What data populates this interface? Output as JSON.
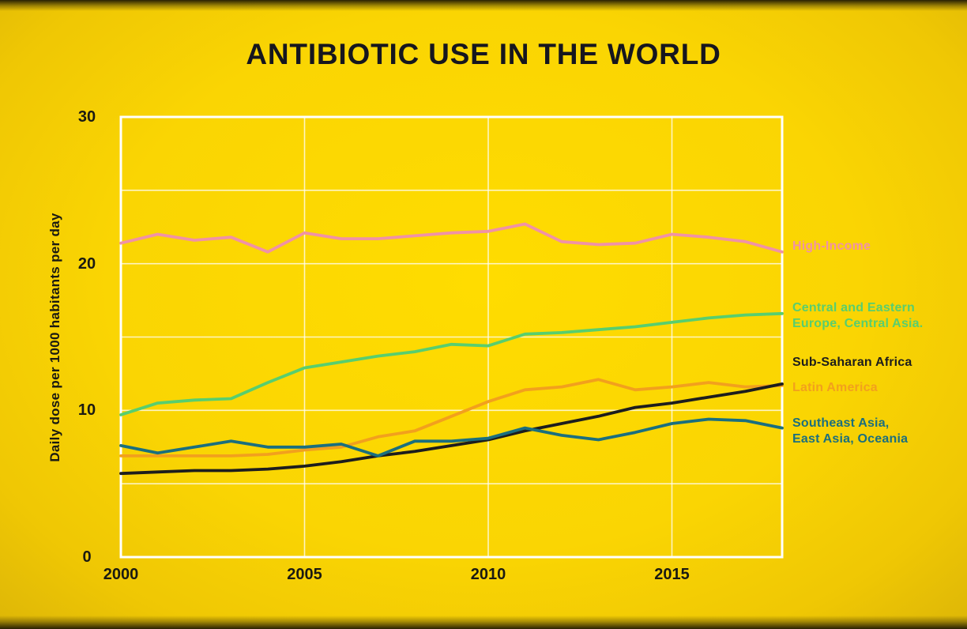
{
  "title": "ANTIBIOTIC USE IN THE WORLD",
  "chart_data": {
    "type": "line",
    "x": [
      2000,
      2001,
      2002,
      2003,
      2004,
      2005,
      2006,
      2007,
      2008,
      2009,
      2010,
      2011,
      2012,
      2013,
      2014,
      2015,
      2016,
      2017,
      2018
    ],
    "series": [
      {
        "id": "high-income",
        "name": "High-Income",
        "legend_lines": [
          "High-Income"
        ],
        "color": "#F092A6",
        "values": [
          21.4,
          22.0,
          21.6,
          21.8,
          20.8,
          22.1,
          21.7,
          21.7,
          21.9,
          22.1,
          22.2,
          22.7,
          21.5,
          21.3,
          21.4,
          22.0,
          21.8,
          21.5,
          20.8
        ]
      },
      {
        "id": "central-eastern-europe-central-asia",
        "name": "Central and Eastern Europe, Central Asia.",
        "legend_lines": [
          "Central and Eastern",
          "Europe, Central Asia."
        ],
        "color": "#58CE6E",
        "values": [
          9.7,
          10.5,
          10.7,
          10.8,
          11.9,
          12.9,
          13.3,
          13.7,
          14.0,
          14.5,
          14.4,
          15.2,
          15.3,
          15.5,
          15.7,
          16.0,
          16.3,
          16.5,
          16.6
        ]
      },
      {
        "id": "sub-saharan-africa",
        "name": "Sub-Saharan Africa",
        "legend_lines": [
          "Sub-Saharan Africa"
        ],
        "color": "#1D1D1D",
        "values": [
          5.7,
          5.8,
          5.9,
          5.9,
          6.0,
          6.2,
          6.5,
          6.9,
          7.2,
          7.6,
          8.0,
          8.6,
          9.1,
          9.6,
          10.2,
          10.5,
          10.9,
          11.3,
          11.8
        ]
      },
      {
        "id": "latin-america",
        "name": "Latin America",
        "legend_lines": [
          "Latin America"
        ],
        "color": "#F2A01D",
        "values": [
          6.9,
          6.9,
          6.9,
          6.9,
          7.0,
          7.3,
          7.5,
          8.2,
          8.6,
          9.6,
          10.6,
          11.4,
          11.6,
          12.1,
          11.4,
          11.6,
          11.9,
          11.6,
          11.7
        ]
      },
      {
        "id": "southeast-asia-east-asia-oceania",
        "name": "Southeast Asia, East Asia, Oceania",
        "legend_lines": [
          "Southeast Asia,",
          "East Asia, Oceania"
        ],
        "color": "#1B6F7E",
        "values": [
          7.6,
          7.1,
          7.5,
          7.9,
          7.5,
          7.5,
          7.7,
          6.9,
          7.9,
          7.9,
          8.1,
          8.8,
          8.3,
          8.0,
          8.5,
          9.1,
          9.4,
          9.3,
          8.8
        ]
      }
    ],
    "xlabel": "",
    "ylabel": "Daily dose per 1000 habitants per day",
    "xlim": [
      2000,
      2018
    ],
    "ylim": [
      0,
      30
    ],
    "x_ticks": [
      2000,
      2005,
      2010,
      2015
    ],
    "y_ticks": [
      30,
      20,
      10,
      0
    ],
    "x_gridlines": [
      2005,
      2010,
      2015
    ],
    "y_gridlines": [
      5,
      10,
      15,
      20,
      25
    ],
    "grid": true,
    "legend_position": "right"
  },
  "colors": {
    "background": "#FAD503",
    "title": "#16161E",
    "axis_text": "#1A1A12",
    "grid": "#FFFFFF"
  }
}
